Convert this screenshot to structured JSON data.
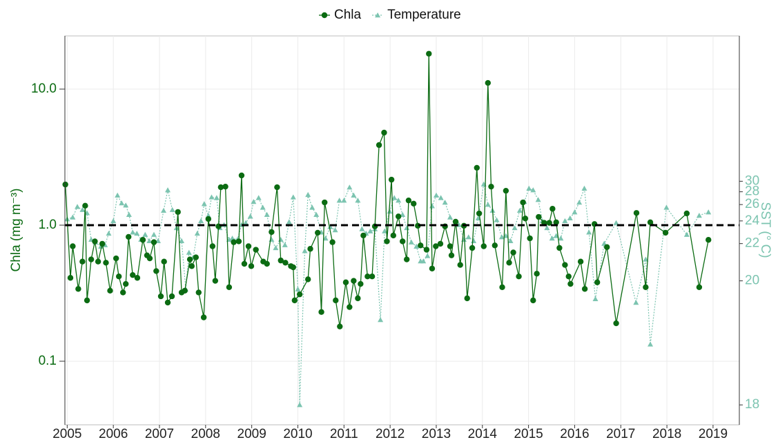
{
  "chart_data": {
    "type": "line",
    "legend_position": "top",
    "grid": true,
    "ylabel": "Chla (mg m⁻³)",
    "y2label": "SST (° C)",
    "xlim": [
      2004.95,
      2019.57
    ],
    "xticks": [
      2005,
      2006,
      2007,
      2008,
      2009,
      2010,
      2011,
      2012,
      2013,
      2014,
      2015,
      2016,
      2017,
      2018,
      2019
    ],
    "ylog": true,
    "ylim": [
      0.0341,
      24.6
    ],
    "yticks": [
      0.1,
      {
        "value": 1,
        "label": "1.0"
      },
      {
        "value": 10,
        "label": "10.0"
      }
    ],
    "y2scale": "log",
    "y2offset": 17.72,
    "y2lim": [
      17.92,
      161.0
    ],
    "y2ticks": [
      18,
      20,
      22,
      24,
      26,
      28,
      30
    ],
    "hline": 1,
    "series": [
      {
        "name": "Chla",
        "color": "#0b6b12",
        "marker": "circle",
        "line": "solid",
        "x": [
          2004.96,
          2005.07,
          2005.12,
          2005.24,
          2005.33,
          2005.39,
          2005.43,
          2005.52,
          2005.6,
          2005.67,
          2005.76,
          2005.84,
          2005.93,
          2006.06,
          2006.12,
          2006.21,
          2006.27,
          2006.33,
          2006.42,
          2006.52,
          2006.64,
          2006.73,
          2006.79,
          2006.88,
          2006.93,
          2007.03,
          2007.1,
          2007.18,
          2007.27,
          2007.4,
          2007.48,
          2007.55,
          2007.66,
          2007.7,
          2007.79,
          2007.85,
          2007.96,
          2008.06,
          2008.15,
          2008.21,
          2008.28,
          2008.33,
          2008.43,
          2008.51,
          2008.61,
          2008.72,
          2008.78,
          2008.84,
          2008.93,
          2008.99,
          2009.09,
          2009.25,
          2009.33,
          2009.43,
          2009.55,
          2009.63,
          2009.73,
          2009.85,
          2009.9,
          2009.93,
          2010.04,
          2010.22,
          2010.27,
          2010.43,
          2010.51,
          2010.58,
          2010.75,
          2010.82,
          2010.91,
          2011.04,
          2011.12,
          2011.21,
          2011.3,
          2011.36,
          2011.42,
          2011.51,
          2011.61,
          2011.67,
          2011.76,
          2011.87,
          2011.93,
          2012.03,
          2012.07,
          2012.18,
          2012.27,
          2012.36,
          2012.4,
          2012.51,
          2012.6,
          2012.66,
          2012.79,
          2012.84,
          2012.91,
          2012.99,
          2013.09,
          2013.19,
          2013.3,
          2013.33,
          2013.42,
          2013.52,
          2013.6,
          2013.67,
          2013.78,
          2013.88,
          2013.93,
          2014.03,
          2014.12,
          2014.19,
          2014.27,
          2014.43,
          2014.51,
          2014.58,
          2014.67,
          2014.79,
          2014.88,
          2014.93,
          2015.03,
          2015.1,
          2015.18,
          2015.22,
          2015.34,
          2015.45,
          2015.52,
          2015.6,
          2015.67,
          2015.79,
          2015.87,
          2015.91,
          2016.13,
          2016.22,
          2016.43,
          2016.49,
          2016.7,
          2016.9,
          2017.34,
          2017.54,
          2017.64,
          2017.97,
          2018.43,
          2018.7,
          2018.9
        ],
        "values": [
          1.99,
          0.41,
          0.7,
          0.34,
          0.54,
          1.39,
          0.28,
          0.56,
          0.76,
          0.54,
          0.73,
          0.53,
          0.33,
          0.57,
          0.42,
          0.32,
          0.37,
          0.82,
          0.43,
          0.41,
          0.78,
          0.6,
          0.57,
          0.75,
          0.46,
          0.3,
          0.54,
          0.27,
          0.3,
          1.25,
          0.32,
          0.33,
          0.56,
          0.5,
          0.58,
          0.32,
          0.21,
          1.11,
          0.7,
          0.39,
          0.98,
          1.9,
          1.92,
          0.35,
          0.75,
          0.76,
          2.32,
          0.52,
          0.7,
          0.5,
          0.66,
          0.54,
          0.52,
          0.89,
          1.9,
          0.55,
          0.53,
          0.5,
          0.49,
          0.28,
          0.31,
          0.4,
          0.67,
          0.88,
          0.23,
          1.47,
          0.75,
          0.28,
          0.18,
          0.38,
          0.25,
          0.39,
          0.29,
          0.37,
          0.84,
          0.42,
          0.42,
          0.98,
          3.88,
          4.79,
          0.76,
          2.16,
          0.84,
          1.16,
          0.76,
          0.56,
          1.52,
          1.44,
          0.99,
          0.71,
          0.66,
          18.2,
          0.48,
          0.7,
          0.73,
          0.98,
          0.7,
          0.6,
          1.06,
          0.51,
          0.99,
          0.29,
          0.68,
          2.64,
          1.22,
          0.7,
          11.1,
          1.92,
          0.71,
          0.35,
          1.79,
          0.53,
          0.63,
          0.42,
          1.47,
          1.12,
          0.8,
          0.28,
          0.44,
          1.15,
          1.04,
          1.04,
          1.32,
          1.05,
          0.68,
          0.51,
          0.42,
          0.37,
          0.54,
          0.34,
          1.02,
          0.38,
          0.69,
          0.19,
          1.23,
          0.35,
          1.05,
          0.88,
          1.22,
          0.35,
          0.78
        ]
      },
      {
        "name": "Temperature",
        "color": "#7cc4b0",
        "marker": "triangle",
        "line": "dotted",
        "axis": "y2",
        "x": [
          2005.0,
          2005.12,
          2005.22,
          2005.33,
          2005.43,
          2005.52,
          2005.61,
          2005.73,
          2005.82,
          2005.9,
          2006.0,
          2006.09,
          2006.18,
          2006.27,
          2006.34,
          2006.42,
          2006.51,
          2006.6,
          2006.69,
          2006.78,
          2006.88,
          2006.97,
          2007.09,
          2007.18,
          2007.28,
          2007.37,
          2007.48,
          2007.57,
          2007.64,
          2007.73,
          2007.82,
          2007.9,
          2007.97,
          2008.06,
          2008.13,
          2008.24,
          2008.31,
          2008.4,
          2008.51,
          2008.58,
          2008.69,
          2008.78,
          2008.87,
          2008.97,
          2009.04,
          2009.15,
          2009.24,
          2009.33,
          2009.43,
          2009.52,
          2009.63,
          2009.72,
          2009.81,
          2009.9,
          2010.0,
          2010.04,
          2010.15,
          2010.22,
          2010.31,
          2010.4,
          2010.51,
          2010.6,
          2010.7,
          2010.81,
          2010.9,
          2011.0,
          2011.12,
          2011.21,
          2011.3,
          2011.39,
          2011.48,
          2011.57,
          2011.67,
          2011.79,
          2011.88,
          2011.99,
          2012.09,
          2012.18,
          2012.27,
          2012.36,
          2012.46,
          2012.57,
          2012.66,
          2012.72,
          2012.81,
          2012.91,
          2013.0,
          2013.1,
          2013.19,
          2013.3,
          2013.4,
          2013.49,
          2013.6,
          2013.7,
          2013.81,
          2013.91,
          2014.03,
          2014.12,
          2014.22,
          2014.31,
          2014.42,
          2014.51,
          2014.61,
          2014.7,
          2014.81,
          2014.91,
          2015.01,
          2015.1,
          2015.21,
          2015.3,
          2015.4,
          2015.51,
          2015.6,
          2015.7,
          2015.79,
          2015.9,
          2016.0,
          2016.1,
          2016.21,
          2016.31,
          2016.45,
          2016.64,
          2016.9,
          2017.33,
          2017.54,
          2017.64,
          2017.99,
          2018.43,
          2018.7,
          2018.9
        ],
        "values": [
          24.2,
          24.4,
          25.7,
          25.3,
          24.9,
          22.3,
          22.1,
          21.8,
          21.9,
          22.8,
          24.0,
          27.4,
          26.2,
          25.9,
          24.7,
          22.9,
          22.8,
          22.3,
          22.7,
          22.2,
          22.7,
          22.2,
          25.2,
          28.3,
          25.3,
          23.3,
          22.2,
          19.7,
          21.4,
          21.1,
          22.8,
          24.0,
          26.1,
          24.6,
          27.1,
          27.0,
          23.3,
          23.6,
          22.3,
          22.4,
          22.3,
          23.6,
          23.8,
          24.5,
          26.4,
          27.0,
          25.6,
          24.7,
          22.3,
          21.7,
          22.3,
          21.9,
          23.9,
          27.1,
          19.7,
          18.0,
          21.5,
          27.5,
          25.6,
          24.7,
          22.9,
          22.4,
          23.4,
          23.1,
          26.6,
          26.6,
          28.8,
          27.4,
          26.6,
          23.2,
          22.8,
          23.0,
          23.2,
          18.9,
          23.0,
          25.1,
          27.0,
          26.6,
          24.7,
          23.3,
          22.1,
          21.8,
          20.9,
          20.9,
          21.2,
          25.8,
          27.4,
          27.0,
          26.3,
          24.4,
          23.7,
          23.6,
          22.3,
          22.5,
          22.2,
          24.3,
          29.4,
          26.0,
          25.2,
          24.1,
          22.5,
          22.6,
          22.2,
          23.3,
          25.2,
          26.4,
          28.6,
          28.3,
          26.7,
          24.0,
          23.3,
          22.4,
          22.6,
          22.4,
          24.0,
          24.3,
          25.0,
          26.3,
          28.6,
          22.9,
          19.4,
          22.0,
          23.8,
          19.3,
          21.0,
          18.5,
          25.6,
          22.7,
          24.6,
          25.0
        ]
      }
    ]
  }
}
